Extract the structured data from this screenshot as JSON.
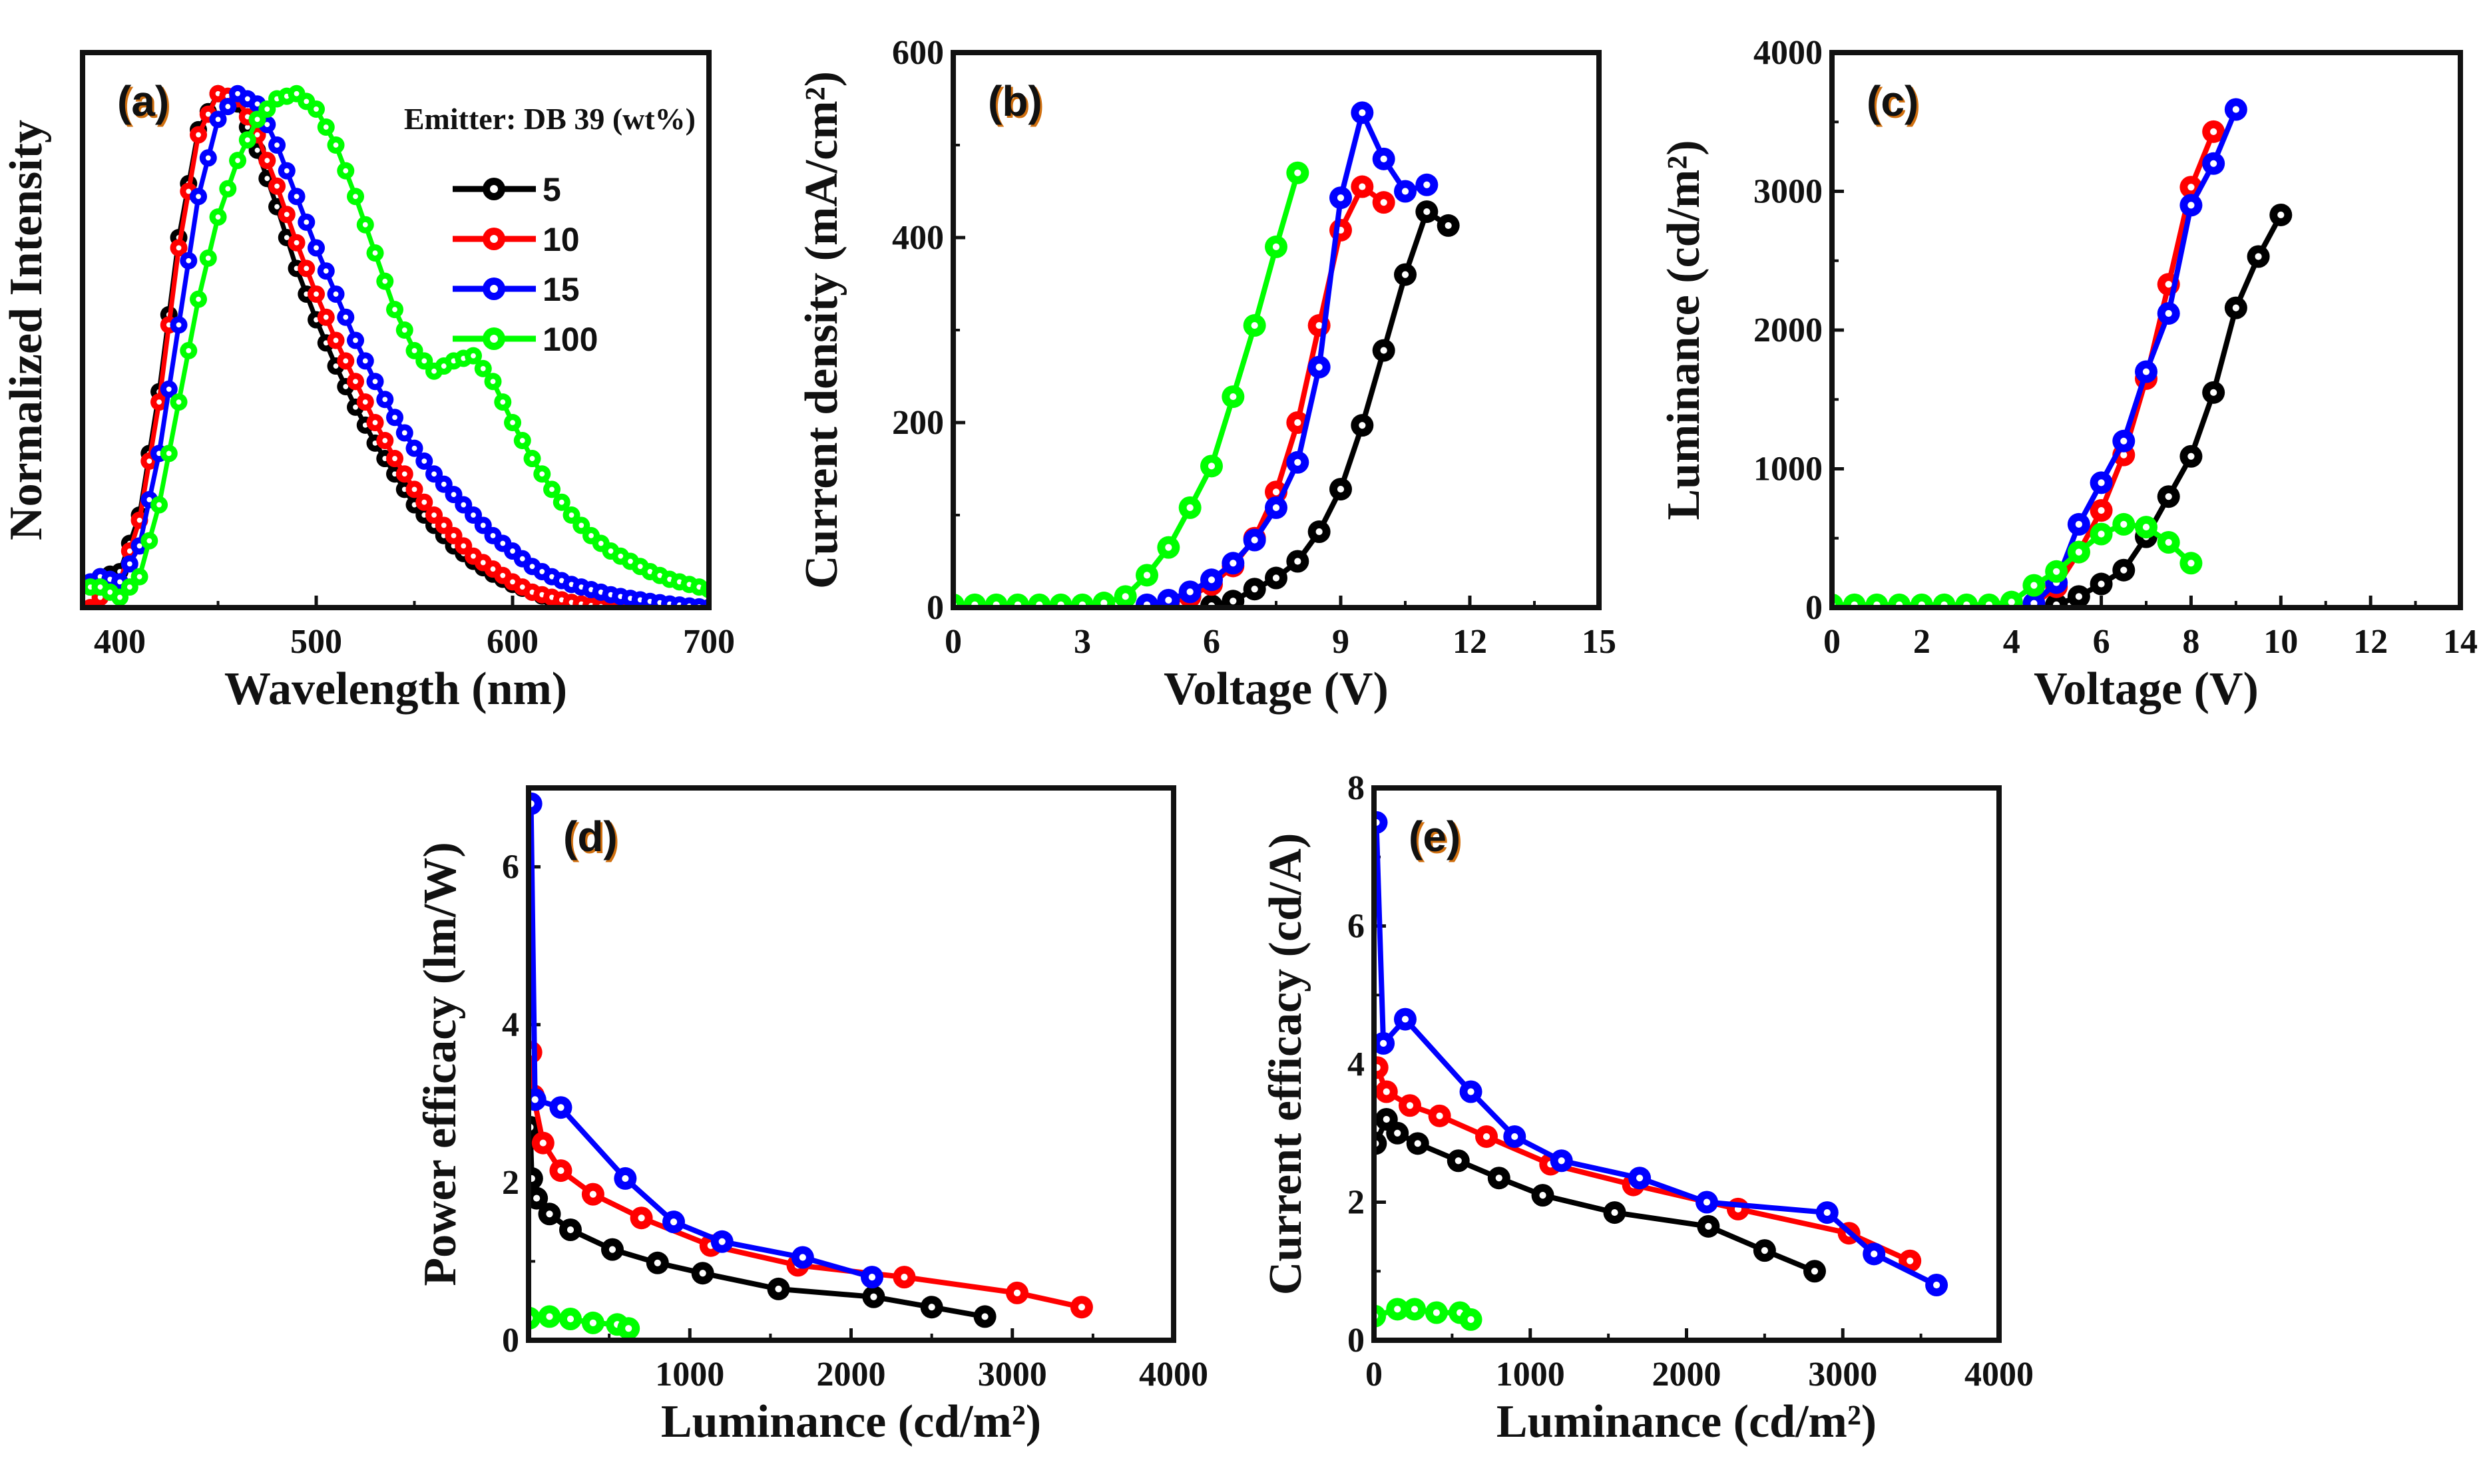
{
  "chart_data": [
    {
      "panel": "(a)",
      "type": "line",
      "xlabel": "Wavelength (nm)",
      "ylabel": "Normalized Intensity",
      "xlim": [
        381,
        700
      ],
      "ylim": [
        0,
        1.08
      ],
      "xticks": [
        "400",
        "500",
        "600",
        "700"
      ],
      "yticks": [],
      "legend": {
        "title": "Emitter: DB 39 (wt%)",
        "placement": "top-right"
      },
      "x": [
        385,
        390,
        400,
        410,
        420,
        430,
        440,
        450,
        460,
        470,
        480,
        490,
        500,
        510,
        520,
        530,
        540,
        550,
        560,
        570,
        580,
        590,
        600,
        610,
        620,
        630,
        640,
        650,
        660,
        670,
        680,
        690,
        700
      ],
      "series": [
        {
          "name": "5",
          "color": "#000000",
          "y": [
            0.04,
            0.06,
            0.07,
            0.18,
            0.42,
            0.72,
            0.93,
            1.0,
            0.98,
            0.89,
            0.78,
            0.66,
            0.56,
            0.47,
            0.39,
            0.32,
            0.26,
            0.2,
            0.16,
            0.12,
            0.09,
            0.065,
            0.045,
            0.03,
            0.015,
            0.005,
            0,
            0,
            0,
            0,
            0,
            0,
            0
          ]
        },
        {
          "name": "10",
          "color": "#ff0000",
          "y": [
            0.0,
            0.02,
            0.05,
            0.17,
            0.4,
            0.7,
            0.92,
            1.0,
            0.99,
            0.92,
            0.82,
            0.71,
            0.61,
            0.52,
            0.44,
            0.36,
            0.29,
            0.23,
            0.18,
            0.14,
            0.1,
            0.075,
            0.05,
            0.03,
            0.02,
            0.01,
            0.004,
            0,
            0,
            0,
            0,
            0,
            0
          ]
        },
        {
          "name": "15",
          "color": "#0000ff",
          "y": [
            0.05,
            0.06,
            0.05,
            0.12,
            0.3,
            0.55,
            0.8,
            0.95,
            1.0,
            0.98,
            0.9,
            0.8,
            0.7,
            0.61,
            0.52,
            0.44,
            0.37,
            0.31,
            0.26,
            0.22,
            0.18,
            0.14,
            0.11,
            0.08,
            0.06,
            0.045,
            0.035,
            0.025,
            0.018,
            0.012,
            0.007,
            0.003,
            0
          ]
        },
        {
          "name": "100",
          "color": "#00ff00",
          "y": [
            0.04,
            0.04,
            0.02,
            0.06,
            0.2,
            0.4,
            0.6,
            0.76,
            0.87,
            0.95,
            0.99,
            1.0,
            0.97,
            0.9,
            0.8,
            0.69,
            0.58,
            0.5,
            0.46,
            0.48,
            0.49,
            0.44,
            0.36,
            0.29,
            0.23,
            0.18,
            0.14,
            0.11,
            0.09,
            0.07,
            0.055,
            0.045,
            0.035
          ]
        }
      ]
    },
    {
      "panel": "(b)",
      "type": "line",
      "xlabel": "Voltage (V)",
      "ylabel": "Current density (mA/cm²)",
      "xlim": [
        0,
        15
      ],
      "ylim": [
        0,
        600
      ],
      "xticks": [
        "0",
        "3",
        "6",
        "9",
        "12",
        "15"
      ],
      "yticks": [
        "0",
        "200",
        "400",
        "600"
      ],
      "series": [
        {
          "name": "5",
          "color": "#000000",
          "x": [
            6,
            6.5,
            7,
            7.5,
            8,
            8.5,
            9,
            9.5,
            10,
            10.5,
            11,
            11.5
          ],
          "y": [
            2,
            7,
            20,
            32,
            50,
            82,
            128,
            197,
            278,
            360,
            428,
            413
          ]
        },
        {
          "name": "10",
          "color": "#ff0000",
          "x": [
            4.5,
            5,
            5.5,
            6,
            6.5,
            7,
            7.5,
            8,
            8.5,
            9,
            9.5,
            10
          ],
          "y": [
            2,
            5,
            12,
            25,
            45,
            75,
            125,
            200,
            305,
            408,
            455,
            438
          ]
        },
        {
          "name": "15",
          "color": "#0000ff",
          "x": [
            4.5,
            5,
            5.5,
            6,
            6.5,
            7,
            7.5,
            8,
            8.5,
            9,
            9.5,
            10,
            10.5,
            11
          ],
          "y": [
            3,
            8,
            17,
            30,
            48,
            73,
            108,
            157,
            260,
            443,
            535,
            485,
            450,
            457
          ]
        },
        {
          "name": "100",
          "color": "#00ff00",
          "x": [
            0,
            0.5,
            1,
            1.5,
            2,
            2.5,
            3,
            3.5,
            4,
            4.5,
            5,
            5.5,
            6,
            6.5,
            7,
            7.5,
            8
          ],
          "y": [
            3,
            3,
            3,
            3,
            3,
            3,
            3,
            5,
            12,
            35,
            65,
            108,
            153,
            228,
            305,
            390,
            470
          ]
        }
      ]
    },
    {
      "panel": "(c)",
      "type": "line",
      "xlabel": "Voltage (V)",
      "ylabel": "Luminance (cd/m²)",
      "xlim": [
        0,
        14
      ],
      "ylim": [
        0,
        4000
      ],
      "xticks": [
        "0",
        "2",
        "4",
        "6",
        "8",
        "10",
        "12",
        "14"
      ],
      "yticks": [
        "0",
        "1000",
        "2000",
        "3000",
        "4000"
      ],
      "series": [
        {
          "name": "5",
          "color": "#000000",
          "x": [
            5,
            5.5,
            6,
            6.5,
            7,
            7.5,
            8,
            8.5,
            9,
            9.5,
            10
          ],
          "y": [
            20,
            80,
            170,
            270,
            510,
            800,
            1090,
            1550,
            2160,
            2530,
            2830
          ]
        },
        {
          "name": "10",
          "color": "#ff0000",
          "x": [
            4.5,
            5,
            5.5,
            6,
            6.5,
            7,
            7.5,
            8,
            8.5
          ],
          "y": [
            20,
            150,
            400,
            700,
            1100,
            1650,
            2330,
            3030,
            3430
          ]
        },
        {
          "name": "15",
          "color": "#0000ff",
          "x": [
            4.5,
            5,
            5.5,
            6,
            6.5,
            7,
            7.5,
            8,
            8.5,
            9
          ],
          "y": [
            30,
            180,
            600,
            900,
            1200,
            1700,
            2120,
            2900,
            3200,
            3590
          ]
        },
        {
          "name": "100",
          "color": "#00ff00",
          "x": [
            0,
            0.5,
            1,
            1.5,
            2,
            2.5,
            3,
            3.5,
            4,
            4.5,
            5,
            5.5,
            6,
            6.5,
            7,
            7.5,
            8
          ],
          "y": [
            20,
            20,
            20,
            20,
            20,
            20,
            20,
            20,
            40,
            160,
            260,
            400,
            530,
            600,
            580,
            470,
            320
          ]
        }
      ]
    },
    {
      "panel": "(d)",
      "type": "line",
      "xlabel": "Luminance (cd/m²)",
      "ylabel": "Power efficacy (lm/W)",
      "xlim": [
        0,
        4000
      ],
      "ylim": [
        0,
        7
      ],
      "xticks": [
        "",
        "1000",
        "2000",
        "3000",
        "4000"
      ],
      "yticks": [
        "0",
        "2",
        "4",
        "6"
      ],
      "series": [
        {
          "name": "5",
          "color": "#000000",
          "x": [
            10,
            20,
            50,
            130,
            260,
            520,
            800,
            1080,
            1550,
            2140,
            2500,
            2830
          ],
          "y": [
            2.7,
            2.05,
            1.8,
            1.6,
            1.4,
            1.15,
            0.98,
            0.85,
            0.65,
            0.55,
            0.42,
            0.3
          ]
        },
        {
          "name": "10",
          "color": "#ff0000",
          "x": [
            15,
            30,
            90,
            200,
            400,
            700,
            1130,
            1670,
            2330,
            3030,
            3430
          ],
          "y": [
            3.65,
            3.1,
            2.5,
            2.15,
            1.85,
            1.55,
            1.2,
            0.95,
            0.8,
            0.6,
            0.42
          ]
        },
        {
          "name": "15",
          "color": "#0000ff",
          "x": [
            15,
            40,
            200,
            600,
            900,
            1200,
            1700,
            2130
          ],
          "y": [
            6.8,
            3.05,
            2.95,
            2.05,
            1.5,
            1.25,
            1.05,
            0.8
          ]
        },
        {
          "name": "100",
          "color": "#00ff00",
          "x": [
            5,
            130,
            260,
            400,
            550,
            620
          ],
          "y": [
            0.28,
            0.3,
            0.27,
            0.22,
            0.2,
            0.15
          ]
        }
      ]
    },
    {
      "panel": "(e)",
      "type": "line",
      "xlabel": "Luminance (cd/m²)",
      "ylabel": "Current efficacy (cd/A)",
      "xlim": [
        0,
        4000
      ],
      "ylim": [
        0,
        8
      ],
      "xticks": [
        "0",
        "1000",
        "2000",
        "3000",
        "4000"
      ],
      "yticks": [
        "0",
        "2",
        "4",
        "6",
        "8"
      ],
      "series": [
        {
          "name": "5",
          "color": "#000000",
          "x": [
            10,
            80,
            150,
            280,
            540,
            800,
            1080,
            1540,
            2140,
            2500,
            2820
          ],
          "y": [
            2.85,
            3.2,
            3.0,
            2.85,
            2.6,
            2.35,
            2.1,
            1.85,
            1.65,
            1.3,
            1.0
          ]
        },
        {
          "name": "10",
          "color": "#ff0000",
          "x": [
            20,
            80,
            230,
            420,
            720,
            1130,
            1660,
            2330,
            3040,
            3430
          ],
          "y": [
            3.95,
            3.6,
            3.4,
            3.25,
            2.95,
            2.55,
            2.25,
            1.9,
            1.55,
            1.15
          ]
        },
        {
          "name": "15",
          "color": "#0000ff",
          "x": [
            15,
            60,
            200,
            620,
            900,
            1200,
            1700,
            2130,
            2900,
            3200,
            3600
          ],
          "y": [
            7.5,
            4.3,
            4.65,
            3.6,
            2.95,
            2.6,
            2.35,
            2.0,
            1.85,
            1.25,
            0.8
          ]
        },
        {
          "name": "100",
          "color": "#00ff00",
          "x": [
            5,
            150,
            260,
            400,
            550,
            620
          ],
          "y": [
            0.35,
            0.45,
            0.45,
            0.4,
            0.4,
            0.3
          ]
        }
      ]
    }
  ]
}
